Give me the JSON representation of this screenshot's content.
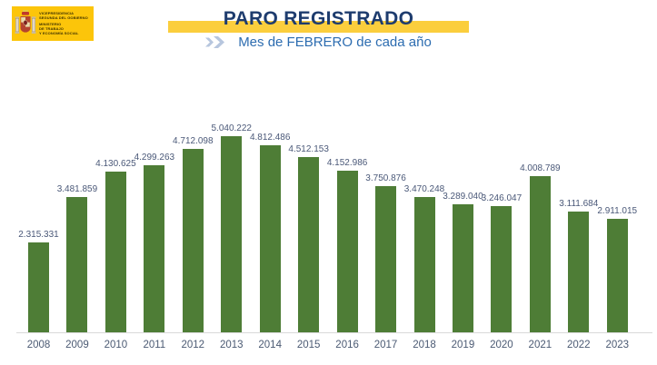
{
  "header": {
    "logo": {
      "bg_color": "#FCC50A",
      "lines_top": [
        "VICEPRESIDENCIA",
        "SEGUNDA DEL GOBIERNO"
      ],
      "lines_bottom": [
        "MINISTERIO",
        "DE TRABAJO",
        "Y ECONOMÍA SOCIAL"
      ]
    },
    "title": "PARO REGISTRADO",
    "subtitle": "Mes de FEBRERO de cada año",
    "title_color": "#1E3C6E",
    "subtitle_color": "#2C6CB0",
    "band_color": "#FBCE3D",
    "chevron_icon": "double-chevron-right",
    "chevron_color": "#B7C6DE"
  },
  "chart_data": {
    "type": "bar",
    "title": "PARO REGISTRADO",
    "subtitle": "Mes de FEBRERO de cada año",
    "categories": [
      "2008",
      "2009",
      "2010",
      "2011",
      "2012",
      "2013",
      "2014",
      "2015",
      "2016",
      "2017",
      "2018",
      "2019",
      "2020",
      "2021",
      "2022",
      "2023"
    ],
    "values": [
      2315331,
      3481859,
      4130625,
      4299263,
      4712098,
      5040222,
      4812486,
      4512153,
      4152986,
      3750876,
      3470248,
      3289040,
      3246047,
      4008789,
      3111684,
      2911015
    ],
    "labels": [
      "2.315.331",
      "3.481.859",
      "4.130.625",
      "4.299.263",
      "4.712.098",
      "5.040.222",
      "4.812.486",
      "4.512.153",
      "4.152.986",
      "3.750.876",
      "3.470.248",
      "3.289.040",
      "3.246.047",
      "4.008.789",
      "3.111.684",
      "2.911.015"
    ],
    "xlabel": "",
    "ylabel": "",
    "ylim": [
      0,
      5250000
    ],
    "grid": false,
    "legend": false,
    "bar_color": "#4E7D36",
    "value_label_color": "#4A5878",
    "axis_label_color": "#4B5A73",
    "baseline_color": "#D9D9D9"
  }
}
